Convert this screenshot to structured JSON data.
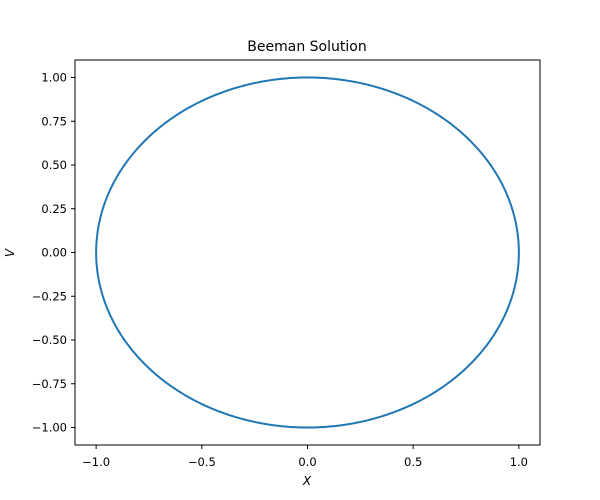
{
  "chart_data": {
    "type": "line",
    "title": "Beeman Solution",
    "xlabel": "X",
    "ylabel": "V",
    "xlim": [
      -1.1,
      1.1
    ],
    "ylim": [
      -1.1,
      1.1
    ],
    "x_ticks": [
      -1.0,
      -0.5,
      0.0,
      0.5,
      1.0
    ],
    "x_tick_labels": [
      "−1.0",
      "−0.5",
      "0.0",
      "0.5",
      "1.0"
    ],
    "y_ticks": [
      1.0,
      0.75,
      0.5,
      0.25,
      0.0,
      -0.25,
      -0.5,
      -0.75,
      -1.0
    ],
    "y_tick_labels": [
      "1.00",
      "0.75",
      "0.50",
      "0.25",
      "0.00",
      "−0.25",
      "−0.50",
      "−0.75",
      "−1.00"
    ],
    "grid": false,
    "series": [
      {
        "color": "#1f77b4",
        "shape": "circle",
        "center": [
          0.0,
          0.0
        ],
        "radius": 1.0
      }
    ]
  }
}
